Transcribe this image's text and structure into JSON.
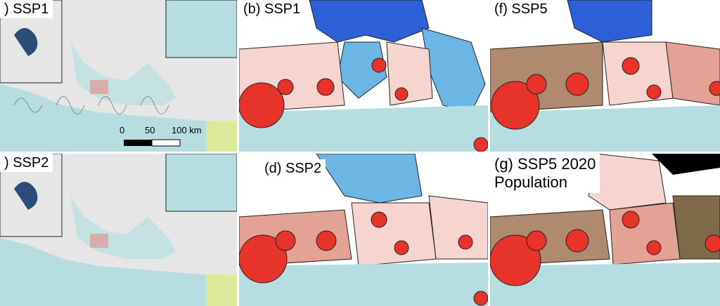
{
  "panels": [
    {
      "id": "a",
      "label": ") SSP1"
    },
    {
      "id": "b",
      "label": "(b) SSP1"
    },
    {
      "id": "f",
      "label": "(f) SSP5"
    },
    {
      "id": "c",
      "label": ") SSP2"
    },
    {
      "id": "d",
      "label": "(d) SSP2"
    },
    {
      "id": "g",
      "label_line1": "(g)  SSP5 2020",
      "label_line2": "Population"
    }
  ],
  "scale": {
    "t0": "0",
    "t50": "50",
    "t100": "100 km"
  },
  "colors": {
    "sea": "#b6dee0",
    "land": "#e6e6e6",
    "bubble": "#e8332a",
    "blue_dark": "#2d5fd6",
    "blue_mid": "#3d8fe0",
    "blue_light": "#6cb6e6",
    "pink": "#f6d4cf",
    "salmon": "#e4a294",
    "brown": "#b08a6e",
    "olive": "#7e6a4a"
  }
}
